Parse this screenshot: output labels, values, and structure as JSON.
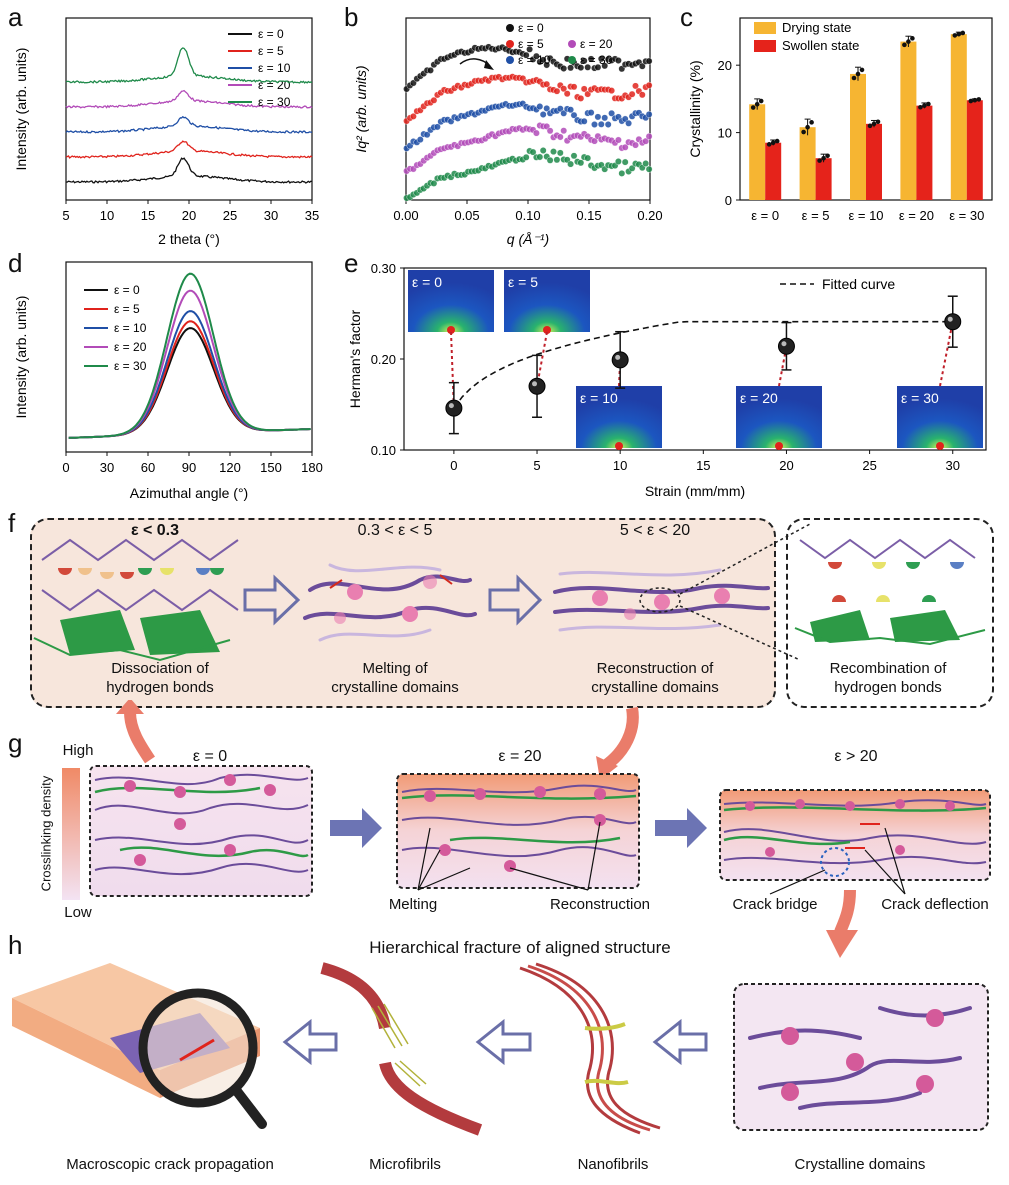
{
  "panel_letters": [
    "a",
    "b",
    "c",
    "d",
    "e",
    "f",
    "g",
    "h"
  ],
  "colors": {
    "black": "#111111",
    "red": "#e0231c",
    "blue": "#1f4fa6",
    "magenta": "#b24bb8",
    "green": "#1f8a4a",
    "drying": "#f6b532",
    "swollen": "#e5231b",
    "peach_bg": "#f7e6dc",
    "purple": "#7b5ea7"
  },
  "chart_data": [
    {
      "id": "a",
      "type": "line",
      "xlabel": "2 theta (°)",
      "ylabel": "Intensity (arb. units)",
      "xlim": [
        5,
        35
      ],
      "xticks": [
        5,
        10,
        15,
        20,
        25,
        30,
        35
      ],
      "series": [
        {
          "name": "ε = 0",
          "color": "#111111",
          "peak": 19.3,
          "offset": 0.0,
          "height": 1.0
        },
        {
          "name": "ε = 5",
          "color": "#e0231c",
          "peak": 19.3,
          "offset": 1.0,
          "height": 0.55
        },
        {
          "name": "ε = 10",
          "color": "#1f4fa6",
          "peak": 19.3,
          "offset": 2.0,
          "height": 0.5
        },
        {
          "name": "ε = 20",
          "color": "#b24bb8",
          "peak": 19.3,
          "offset": 3.0,
          "height": 0.55
        },
        {
          "name": "ε = 30",
          "color": "#1f8a4a",
          "peak": 19.3,
          "offset": 4.0,
          "height": 1.6
        }
      ]
    },
    {
      "id": "b",
      "type": "scatter",
      "xlabel": "q (Å⁻¹)",
      "ylabel": "Iq² (arb. units)",
      "xlim": [
        0,
        0.2
      ],
      "xticks": [
        0.0,
        0.05,
        0.1,
        0.15,
        0.2
      ],
      "series": [
        {
          "name": "ε = 0",
          "color": "#111111",
          "base": 4.0,
          "hump": 0.07
        },
        {
          "name": "ε = 5",
          "color": "#e0231c",
          "base": 3.0,
          "hump": 0.08
        },
        {
          "name": "ε = 10",
          "color": "#1f4fa6",
          "base": 2.1,
          "hump": 0.09
        },
        {
          "name": "ε = 20",
          "color": "#b24bb8",
          "base": 1.3,
          "hump": 0.1
        },
        {
          "name": "ε = 30",
          "color": "#1f8a4a",
          "base": 0.4,
          "hump": 0.11
        }
      ]
    },
    {
      "id": "c",
      "type": "bar",
      "ylabel": "Crystallinity (%)",
      "ylim": [
        0,
        27
      ],
      "yticks": [
        0,
        10,
        20
      ],
      "categories": [
        "ε = 0",
        "ε = 5",
        "ε = 10",
        "ε = 20",
        "ε = 30"
      ],
      "series": [
        {
          "name": "Drying state",
          "color": "#f6b532",
          "values": [
            14.2,
            10.8,
            18.7,
            23.5,
            24.6
          ],
          "err": [
            0.8,
            1.2,
            1.0,
            0.8,
            0.3
          ]
        },
        {
          "name": "Swollen state",
          "color": "#e5231b",
          "values": [
            8.5,
            6.2,
            11.3,
            14.0,
            14.8
          ],
          "err": [
            0.4,
            0.6,
            0.5,
            0.4,
            0.2
          ]
        }
      ]
    },
    {
      "id": "d",
      "type": "line",
      "xlabel": "Azimuthal angle (°)",
      "ylabel": "Intensity (arb. units)",
      "xlim": [
        0,
        180
      ],
      "xticks": [
        0,
        30,
        60,
        90,
        120,
        150,
        180
      ],
      "series": [
        {
          "name": "ε = 0",
          "color": "#111111",
          "amp": 0.62
        },
        {
          "name": "ε = 5",
          "color": "#e0231c",
          "amp": 0.66
        },
        {
          "name": "ε = 10",
          "color": "#1f4fa6",
          "amp": 0.72
        },
        {
          "name": "ε = 20",
          "color": "#b24bb8",
          "amp": 0.84
        },
        {
          "name": "ε = 30",
          "color": "#1f8a4a",
          "amp": 0.94
        }
      ]
    },
    {
      "id": "e",
      "type": "scatter",
      "xlabel": "Strain (mm/mm)",
      "ylabel": "Herman's factor",
      "xlim": [
        -3,
        32
      ],
      "ylim": [
        0.1,
        0.3
      ],
      "xticks": [
        0,
        5,
        10,
        15,
        20,
        25,
        30
      ],
      "yticks": [
        0.1,
        0.2,
        0.3
      ],
      "x": [
        0,
        5,
        10,
        20,
        30
      ],
      "y": [
        0.146,
        0.17,
        0.199,
        0.214,
        0.241
      ],
      "err": [
        0.028,
        0.034,
        0.031,
        0.026,
        0.028
      ],
      "legend": "Fitted curve",
      "insets": [
        "ε = 0",
        "ε = 5",
        "ε = 10",
        "ε = 20",
        "ε = 30"
      ]
    }
  ],
  "f": {
    "stages": [
      {
        "title": "ε < 0.3",
        "caption": [
          "Dissociation of",
          "hydrogen bonds"
        ]
      },
      {
        "title": "0.3 < ε < 5",
        "caption": [
          "Melting of",
          "crystalline domains"
        ]
      },
      {
        "title": "5 < ε < 20",
        "caption": [
          "Reconstruction of",
          "crystalline domains"
        ]
      },
      {
        "title": "",
        "caption": [
          "Recombination of",
          "hydrogen bonds"
        ]
      }
    ]
  },
  "g": {
    "high": "High",
    "low": "Low",
    "density_label": "Crosslinking density",
    "titles": [
      "ε = 0",
      "ε = 20",
      "ε > 20"
    ],
    "labels": [
      "Melting",
      "Reconstruction",
      "Crack bridge",
      "Crack deflection"
    ]
  },
  "h": {
    "title": "Hierarchical fracture of aligned structure",
    "captions": [
      "Macroscopic crack propagation",
      "Microfibrils",
      "Nanofibrils",
      "Crystalline domains"
    ]
  }
}
